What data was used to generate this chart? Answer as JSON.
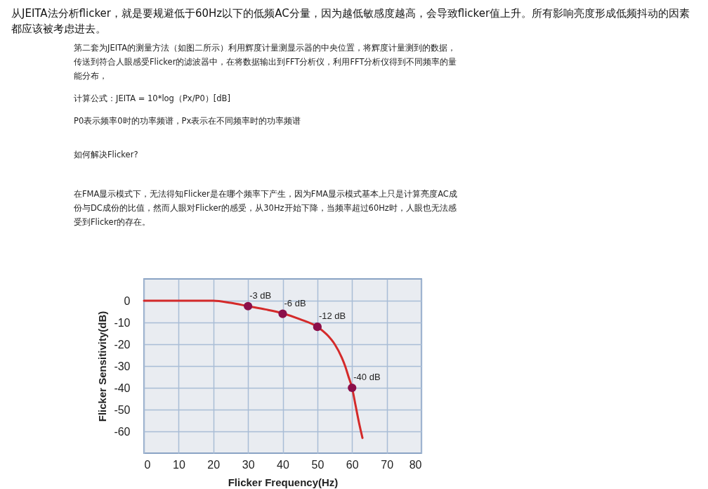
{
  "chart_data": {
    "type": "line",
    "xlabel": "Flicker Frequency(Hz)",
    "ylabel": "Flicker Sensitivity(dB)",
    "xlim": [
      0,
      80
    ],
    "ylim": [
      -70,
      10
    ],
    "xticks": [
      0,
      10,
      20,
      30,
      40,
      50,
      60,
      70,
      80
    ],
    "yticks": [
      0,
      -10,
      -20,
      -30,
      -40,
      -50,
      -60
    ],
    "grid": true,
    "series": [
      {
        "type": "line",
        "color": "#d42a2a",
        "line_style": "solid",
        "x": [
          0,
          20,
          25,
          30,
          35,
          40,
          45,
          50,
          53,
          55,
          57,
          58,
          59,
          60,
          61,
          62,
          63
        ],
        "values": [
          0,
          0,
          -1,
          -2.5,
          -4,
          -5.8,
          -8.5,
          -12,
          -16,
          -20,
          -26,
          -30,
          -35,
          -40,
          -48,
          -56,
          -63
        ]
      },
      {
        "type": "scatter",
        "color": "#8b0f4a",
        "marker": "circle",
        "x": [
          30,
          40,
          50,
          60
        ],
        "values": [
          -2.5,
          -6,
          -12,
          -40
        ]
      }
    ],
    "annotations": [
      "从JEITA法分析flicker，就是要规避低于60Hz以下的低频AC分量，因为越低敏感度越高，会导致flicker值上升。所有影响亮度形成低频抖动的因素都应该被考虑进去。",
      "第二套为JEITA的测量方法（如图二所示）利用辉度计量测显示器的中央位置，将辉度计量测到的数据，传送到符合人眼感受Flicker的滤波器中，在将数据输出到FFT分析仪，利用FFT分析仪得到不同频率的量能分布，",
      "计算公式：JEITA = 10*log（Px/P0）[dB]",
      "P0表示频率0时的功率频谱，Px表示在不同频率时的功率频谱",
      "如何解决Flicker?",
      "在FMA显示模式下，无法得知Flicker是在哪个频率下产生，因为FMA显示模式基本上只是计算亮度AC成份与DC成份的比值，然而人眼对Flicker的感受，从30Hz开始下降，当频率超过60Hz时，人眼也无法感受到Flicker的存在。",
      {
        "text": "-3 dB",
        "x": 30,
        "y": -2.5
      },
      {
        "text": "-6 dB",
        "x": 40,
        "y": -6
      },
      {
        "text": "-12 dB",
        "x": 50,
        "y": -12
      },
      {
        "text": "-40 dB",
        "x": 60,
        "y": -40
      }
    ]
  }
}
